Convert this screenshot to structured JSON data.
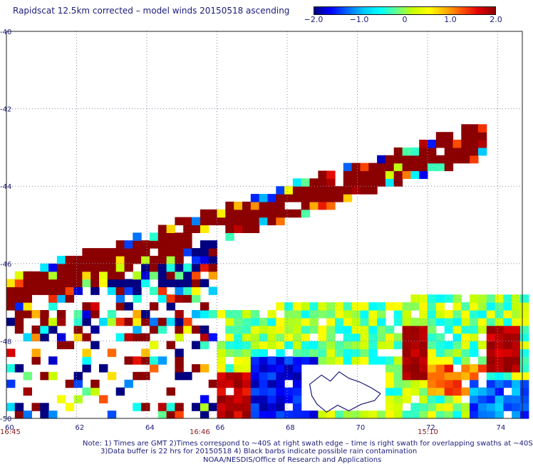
{
  "header": {
    "title": "Rapidscat 12.5km corrected – model winds 20150518 ascending"
  },
  "colorbar": {
    "ticks": [
      "−2.0",
      "−1.0",
      "0",
      "1.0",
      "2.0"
    ],
    "tick_values": [
      -2.0,
      -1.0,
      0,
      1.0,
      2.0
    ],
    "stops": [
      "#000080",
      "#0000ff",
      "#0064ff",
      "#00c8ff",
      "#00ffff",
      "#60ff90",
      "#c8ff00",
      "#ffff00",
      "#ffb000",
      "#ff5000",
      "#e00000",
      "#8b0000"
    ]
  },
  "chart_data": {
    "type": "heatmap",
    "title": "Rapidscat 12.5km corrected – model winds 20150518 ascending",
    "xlabel": "",
    "ylabel": "",
    "xlim": [
      60,
      74.7
    ],
    "ylim": [
      -50,
      -40
    ],
    "x_ticks": [
      "60",
      "62",
      "64",
      "66",
      "68",
      "70",
      "72",
      "74"
    ],
    "y_ticks": [
      "-40",
      "-42",
      "-44",
      "-46",
      "-48",
      "-50"
    ],
    "grid": true,
    "time_labels": [
      {
        "text": "16:45",
        "x": 60
      },
      {
        "text": "16:46",
        "x": 65.4
      },
      {
        "text": "15:10",
        "x": 71.9
      }
    ],
    "colorbar_range": [
      -2.0,
      2.0
    ],
    "features": [
      {
        "name": "upper band (rising to the northeast)",
        "x": [
          60,
          73.6
        ],
        "y": [
          -47,
          -42.6
        ],
        "dominant_value": 2.0
      },
      {
        "name": "northwestern scattered swath",
        "x": [
          60,
          66
        ],
        "y": [
          -50,
          -44
        ],
        "value_range": [
          -2.0,
          2.0
        ]
      },
      {
        "name": "main eastern swath",
        "x": [
          65.5,
          74.7
        ],
        "y": [
          -50,
          -47.3
        ],
        "value_range": [
          -2.0,
          2.0
        ]
      },
      {
        "name": "island outline",
        "x": [
          68.6,
          70.7
        ],
        "y": [
          -49.9,
          -48.7
        ]
      }
    ]
  },
  "footer": {
    "note1": "Note: 1) Times are GMT 2)Times correspond to ~40S at right swath edge – time is right swath for overlapping swaths at ~40S",
    "note2": "3)Data buffer is 22 hrs for 20150518 4) Black barbs indicate possible rain contamination",
    "note3": "NOAA/NESDIS/Office of Research and Applications"
  }
}
